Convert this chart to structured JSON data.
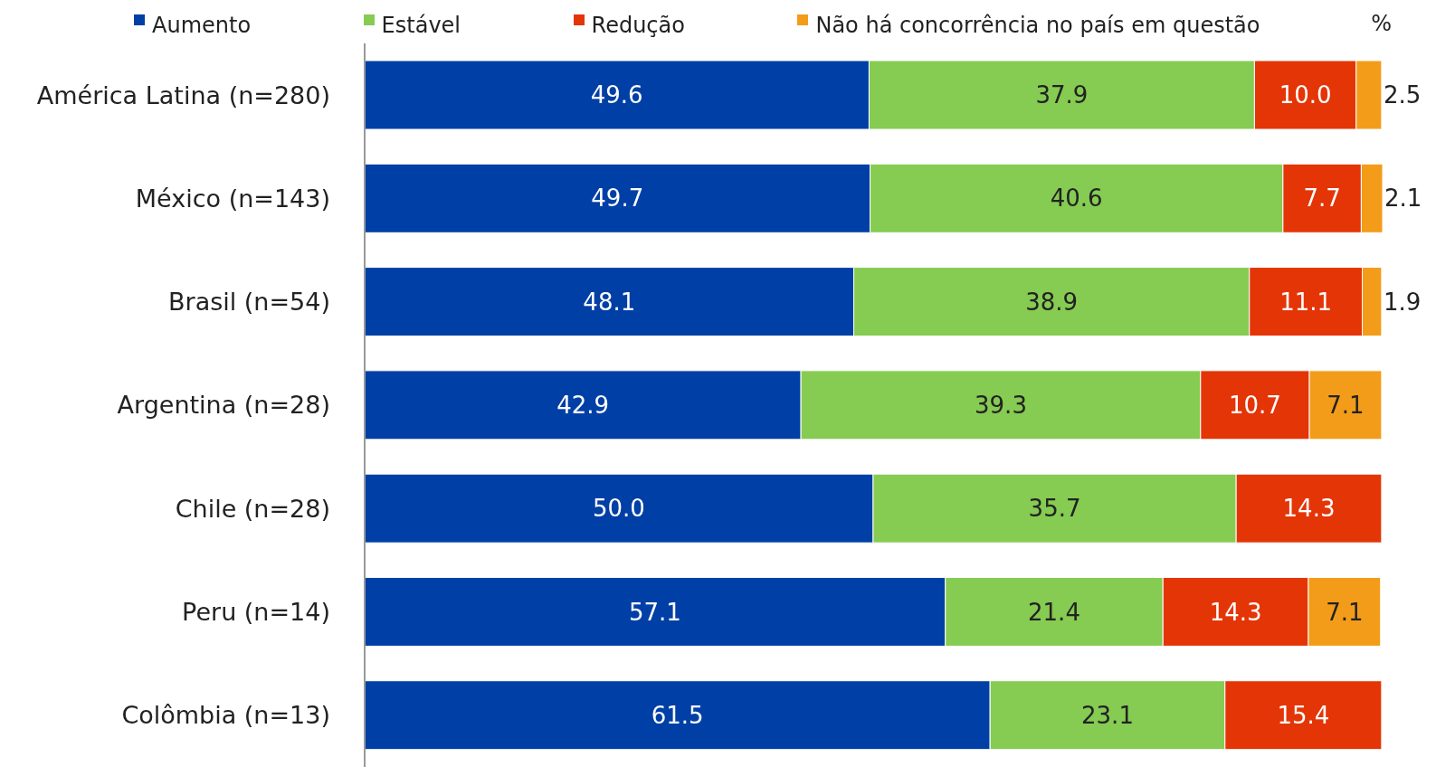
{
  "chart_data": {
    "type": "bar",
    "orientation": "horizontal",
    "stacked": true,
    "legend": "top",
    "tick_labels": "y",
    "xlabel": "%",
    "categories": [
      "América Latina (n=280)",
      "México (n=143)",
      "Brasil (n=54)",
      "Argentina (n=28)",
      "Chile (n=28)",
      "Peru (n=14)",
      "Colômbia (n=13)"
    ],
    "series": [
      {
        "name": "Aumento",
        "color": "#003fa5",
        "values": [
          49.6,
          49.7,
          48.1,
          42.9,
          50,
          57.1,
          61.5
        ],
        "value_labels": [
          "49.6",
          "49.7",
          "48.1",
          "42.9",
          "50.0",
          "57.1",
          "61.5"
        ]
      },
      {
        "name": "Estável",
        "color": "#86cb52",
        "values": [
          37.9,
          40.6,
          38.9,
          39.3,
          35.7,
          21.4,
          23.1
        ],
        "value_labels": [
          "37.9",
          "40.6",
          "38.9",
          "39.3",
          "35.7",
          "21.4",
          "23.1"
        ]
      },
      {
        "name": "Redução",
        "color": "#e43507",
        "values": [
          10,
          7.7,
          11.1,
          10.7,
          14.3,
          14.3,
          15.4
        ],
        "value_labels": [
          "10.0",
          "7.7",
          "11.1",
          "10.7",
          "14.3",
          "14.3",
          "15.4"
        ]
      },
      {
        "name": "Não há concorrência no país em questão",
        "color": "#f39c1a",
        "values": [
          2.5,
          2.1,
          1.9,
          7.1,
          null,
          7.1,
          null
        ],
        "value_labels": [
          "2.5",
          "2.1",
          "1.9",
          "7.1",
          null,
          "7.1",
          null
        ]
      }
    ]
  }
}
